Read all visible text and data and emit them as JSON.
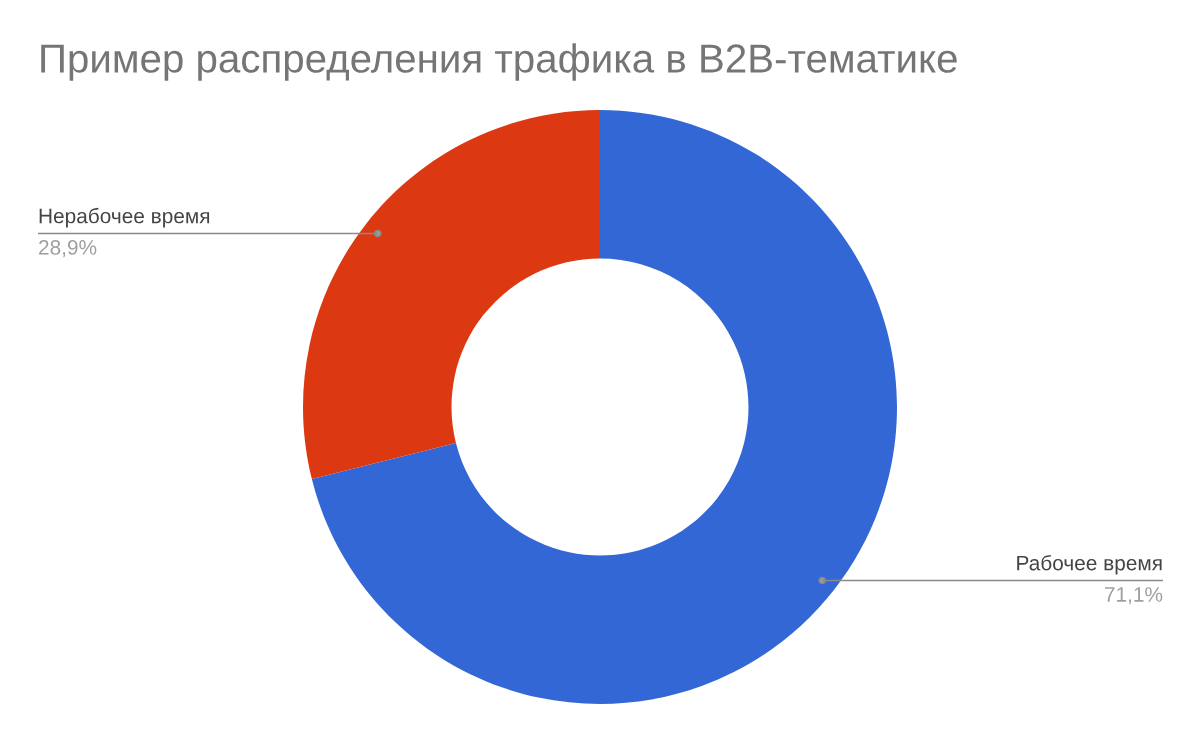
{
  "chart_data": {
    "type": "donut",
    "title": "Пример распределения трафика в B2B-тематике",
    "categories": [
      "Рабочее время",
      "Нерабочее время"
    ],
    "values": [
      71.1,
      28.9
    ],
    "colors": [
      "#3367d6",
      "#dc3912"
    ],
    "value_labels": [
      "71,1%",
      "28,9%"
    ]
  }
}
